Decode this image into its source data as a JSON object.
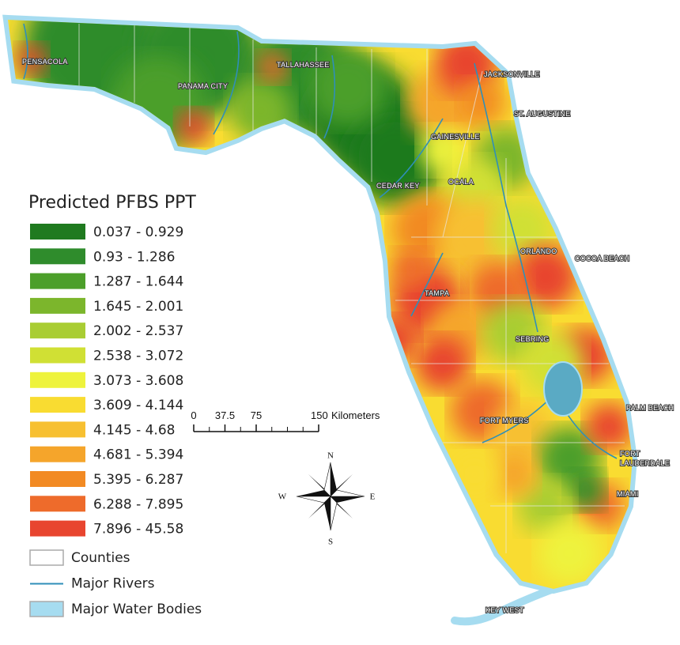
{
  "legend": {
    "title": "Predicted PFBS PPT",
    "classes": [
      {
        "label": "0.037 - 0.929",
        "color": "#1f7a1f"
      },
      {
        "label": "0.93 - 1.286",
        "color": "#2f8c2c"
      },
      {
        "label": "1.287 - 1.644",
        "color": "#4c9f2a"
      },
      {
        "label": "1.645 - 2.001",
        "color": "#7cb62c"
      },
      {
        "label": "2.002 - 2.537",
        "color": "#a9cd33"
      },
      {
        "label": "2.538 - 3.072",
        "color": "#d0e034"
      },
      {
        "label": "3.073 - 3.608",
        "color": "#eef33c"
      },
      {
        "label": "3.609 - 4.144",
        "color": "#f9dc31"
      },
      {
        "label": "4.145 - 4.68",
        "color": "#f7c031"
      },
      {
        "label": "4.681 - 5.394",
        "color": "#f5a52b"
      },
      {
        "label": "5.395 - 6.287",
        "color": "#f28a23"
      },
      {
        "label": "6.288 - 7.895",
        "color": "#ee6b2b"
      },
      {
        "label": "7.896 - 45.58",
        "color": "#e8452f"
      }
    ],
    "layers": [
      {
        "label": "Counties",
        "color": "#ffffff"
      },
      {
        "label": "Major Rivers",
        "color": "#2f8fb8"
      },
      {
        "label": "Major Water Bodies",
        "color": "#a6dcf0"
      }
    ]
  },
  "scale_bar": {
    "ticks": [
      0,
      37.5,
      75,
      150
    ],
    "unit": "Kilometers"
  },
  "compass": {
    "north": "N",
    "south": "S",
    "east": "E",
    "west": "W"
  },
  "cities": [
    {
      "lines": [
        "PENSACOLA"
      ]
    },
    {
      "lines": [
        "PANAMA CITY"
      ]
    },
    {
      "lines": [
        "TALLAHASSEE"
      ]
    },
    {
      "lines": [
        "JACKSONVILLE"
      ]
    },
    {
      "lines": [
        "ST. AUGUSTINE"
      ]
    },
    {
      "lines": [
        "GAINESVILLE"
      ]
    },
    {
      "lines": [
        "CEDAR KEY"
      ]
    },
    {
      "lines": [
        "OCALA"
      ]
    },
    {
      "lines": [
        "ORLANDO"
      ]
    },
    {
      "lines": [
        "COCOA BEACH"
      ]
    },
    {
      "lines": [
        "TAMPA"
      ]
    },
    {
      "lines": [
        "SEBRING"
      ]
    },
    {
      "lines": [
        "PALM BEACH"
      ]
    },
    {
      "lines": [
        "FORT MYERS"
      ]
    },
    {
      "lines": [
        "FORT",
        "LAUDERDALE"
      ]
    },
    {
      "lines": [
        "MIAMI"
      ]
    },
    {
      "lines": [
        "KEY WEST"
      ]
    }
  ]
}
